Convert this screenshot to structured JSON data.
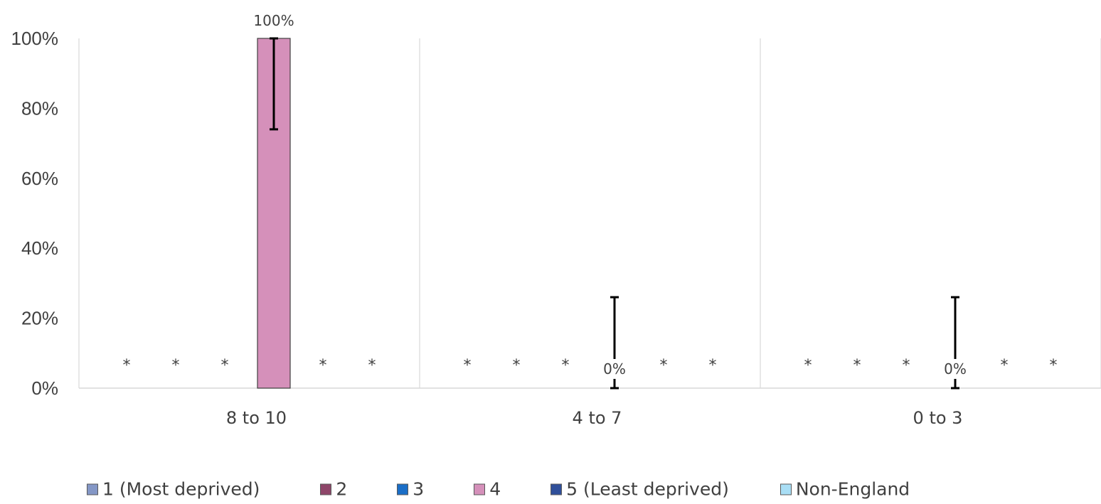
{
  "chart_data": {
    "type": "bar",
    "categories": [
      "8 to 10",
      "4 to 7",
      "0 to 3"
    ],
    "ylim": [
      0,
      1
    ],
    "yticks": [
      {
        "value": 0,
        "label": "0%"
      },
      {
        "value": 0.2,
        "label": "20%"
      },
      {
        "value": 0.4,
        "label": "40%"
      },
      {
        "value": 0.6,
        "label": "60%"
      },
      {
        "value": 0.8,
        "label": "80%"
      },
      {
        "value": 1.0,
        "label": "100%"
      }
    ],
    "grid": false,
    "legend_position": "bottom",
    "suppressed_marker": "*",
    "series": [
      {
        "name": "1 (Most deprived)",
        "color": "#8497c6",
        "values": [
          null,
          null,
          null
        ],
        "labels": [
          "*",
          "*",
          "*"
        ]
      },
      {
        "name": "2",
        "color": "#8e4669",
        "values": [
          null,
          null,
          null
        ],
        "labels": [
          "*",
          "*",
          "*"
        ]
      },
      {
        "name": "3",
        "color": "#1a6ec7",
        "values": [
          null,
          null,
          null
        ],
        "labels": [
          "*",
          "*",
          "*"
        ]
      },
      {
        "name": "4",
        "color": "#d590ba",
        "values": [
          1.0,
          0.0,
          0.0
        ],
        "labels": [
          "100%",
          "0%",
          "0%"
        ],
        "error_low": [
          0.74,
          0.0,
          0.0
        ],
        "error_high": [
          1.0,
          0.26,
          0.26
        ]
      },
      {
        "name": "5 (Least deprived)",
        "color": "#2f4f9a",
        "values": [
          null,
          null,
          null
        ],
        "labels": [
          "*",
          "*",
          "*"
        ]
      },
      {
        "name": "Non-England",
        "color": "#a9def5",
        "values": [
          null,
          null,
          null
        ],
        "labels": [
          "*",
          "*",
          "*"
        ]
      }
    ]
  }
}
